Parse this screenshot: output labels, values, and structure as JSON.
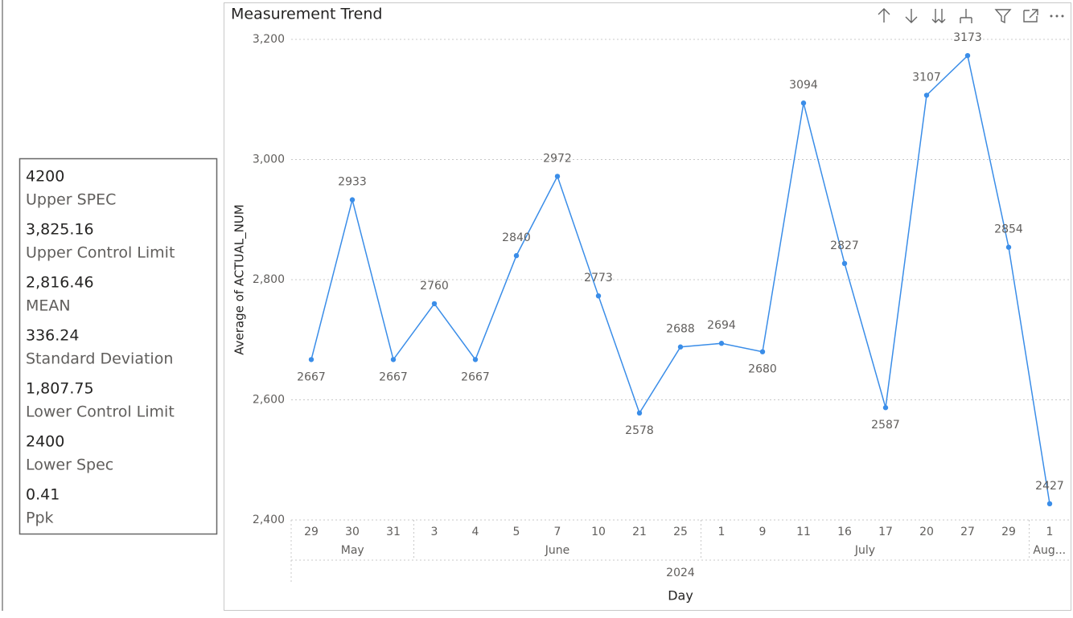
{
  "cards": [
    {
      "value": "4200",
      "label": "Upper SPEC"
    },
    {
      "value": "3,825.16",
      "label": "Upper Control Limit"
    },
    {
      "value": "2,816.46",
      "label": "MEAN"
    },
    {
      "value": "336.24",
      "label": "Standard Deviation"
    },
    {
      "value": "1,807.75",
      "label": "Lower Control Limit"
    },
    {
      "value": "2400",
      "label": "Lower Spec"
    },
    {
      "value": "0.41",
      "label": "Ppk"
    }
  ],
  "chart_data": {
    "type": "line",
    "title": "Measurement Trend",
    "y_label": "Average of ACTUAL_NUM",
    "x_label": "Day",
    "year": "2024",
    "months": [
      {
        "name": "May",
        "days": [
          "29",
          "30",
          "31"
        ]
      },
      {
        "name": "June",
        "days": [
          "3",
          "4",
          "5",
          "7",
          "10",
          "21",
          "25"
        ]
      },
      {
        "name": "July",
        "days": [
          "1",
          "9",
          "11",
          "16",
          "17",
          "20",
          "27",
          "29"
        ]
      },
      {
        "name": "Aug...",
        "days": [
          "1"
        ]
      }
    ],
    "series": [
      {
        "name": "Average of ACTUAL_NUM",
        "color": "#3a8de8",
        "values": [
          2667,
          2933,
          2667,
          2760,
          2667,
          2840,
          2972,
          2773,
          2578,
          2688,
          2694,
          2680,
          3094,
          2827,
          2587,
          3107,
          3173,
          2854,
          2427
        ]
      }
    ],
    "ylim": [
      2400,
      3200
    ],
    "yticks": [
      {
        "value": 2400,
        "label": "2,400"
      },
      {
        "value": 2600,
        "label": "2,600"
      },
      {
        "value": 2800,
        "label": "2,800"
      },
      {
        "value": 3000,
        "label": "3,000"
      },
      {
        "value": 3200,
        "label": "3,200"
      }
    ],
    "grid": true
  }
}
